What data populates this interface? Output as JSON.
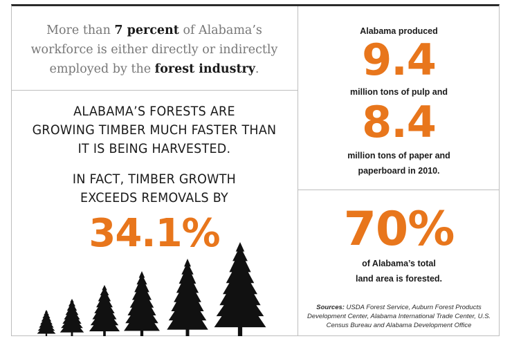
{
  "workforce": {
    "t1": "More than ",
    "b1": "7 percent",
    "t2": " of Alabama’s workforce is either directly or indirectly employed by the ",
    "b2": "forest industry",
    "t3": "."
  },
  "forests": {
    "line1": "Alabama’s forests are",
    "line2": "growing timber much faster than",
    "line3": "it is being harvested.",
    "line4": "In fact, timber growth",
    "line5": "exceeds removals by",
    "percent": "34.1%"
  },
  "production": {
    "intro": "Alabama produced",
    "pulp_value": "9.4",
    "pulp_label": "million tons of pulp and",
    "paper_value": "8.4",
    "paper_label1": "million tons of paper and",
    "paper_label2": "paperboard in 2010."
  },
  "land": {
    "percent": "70%",
    "label1": "of Alabama’s total",
    "label2": "land area is forested."
  },
  "sources": {
    "label": "Sources:",
    "text": " USDA Forest Service, Auburn Forest Products Development Center, Alabama International Trade Center, U.S. Census Bureau and Alabama Development Office"
  },
  "colors": {
    "accent": "#e8761c",
    "text": "#1a1a1a",
    "muted": "#777777",
    "tree": "#111111"
  },
  "icons": [
    "tree-icon"
  ]
}
